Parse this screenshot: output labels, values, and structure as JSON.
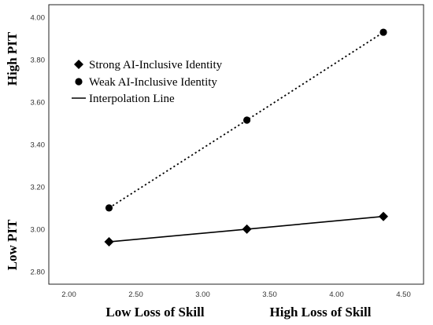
{
  "chart_data": {
    "type": "line",
    "x_ticks": [
      "2.00",
      "2.50",
      "3.00",
      "3.50",
      "4.00",
      "4.50"
    ],
    "y_ticks": [
      "2.80",
      "3.00",
      "3.20",
      "3.40",
      "3.60",
      "3.80",
      "4.00"
    ],
    "xlim": [
      1.85,
      4.65
    ],
    "ylim": [
      2.74,
      4.06
    ],
    "x_labels": {
      "low": "Low Loss of Skill",
      "high": "High Loss of Skill"
    },
    "y_labels": {
      "low": "Low PIT",
      "high": "High PIT"
    },
    "legend_position": "top-left",
    "series": [
      {
        "name": "Strong AI-Inclusive Identity",
        "marker": "diamond",
        "line": "solid",
        "x": [
          2.3,
          3.33,
          4.35
        ],
        "y": [
          2.94,
          3.0,
          3.06
        ]
      },
      {
        "name": "Weak AI-Inclusive Identity",
        "marker": "circle",
        "line": "dotted",
        "x": [
          2.3,
          3.33,
          4.35
        ],
        "y": [
          3.1,
          3.515,
          3.93
        ]
      }
    ],
    "interpolation_label": "Interpolation Line",
    "colors": {
      "marks": "#000000",
      "frame": "#222222",
      "tick_text": "#333333"
    }
  }
}
